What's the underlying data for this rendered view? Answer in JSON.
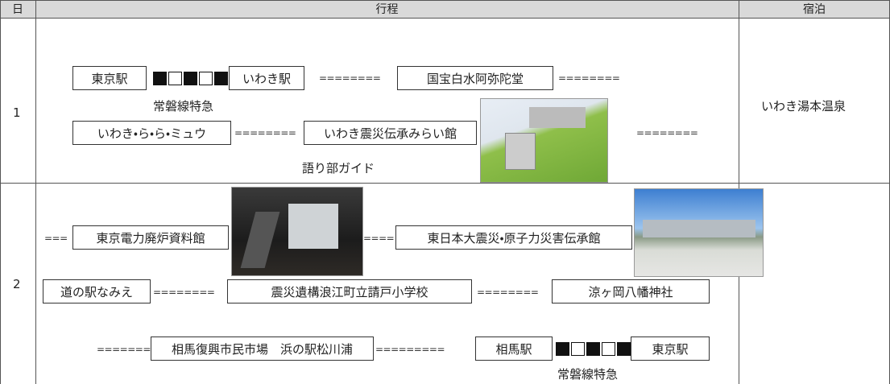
{
  "table": {
    "header": [
      "日",
      "行程",
      "宿泊"
    ],
    "rows": [
      {
        "day": "1",
        "itinerary": [
          "東京駅",
          "いわき駅",
          "========",
          "国宝白水阿弥陀堂",
          "========",
          "常磐線特急",
          "いわき・ら・ら・ミュウ",
          "========",
          "いわき震災伝承みらい館",
          "========",
          "語り部ガイド"
        ],
        "lodging": "いわき湯本温泉"
      },
      {
        "day": "2",
        "itinerary": [
          "===",
          "東京電力廃炉資料館",
          "====",
          "東日本大震災・原子力災害伝承館",
          "道の駅なみえ",
          "========",
          "震災遺構浪江町立請戸小学校",
          "========",
          "涼ヶ岡八幡神社",
          "========",
          "相馬復興市民市場　浜の駅松川浦",
          "=========",
          "相馬駅",
          "東京駅",
          "常磐線特急"
        ]
      }
    ]
  }
}
